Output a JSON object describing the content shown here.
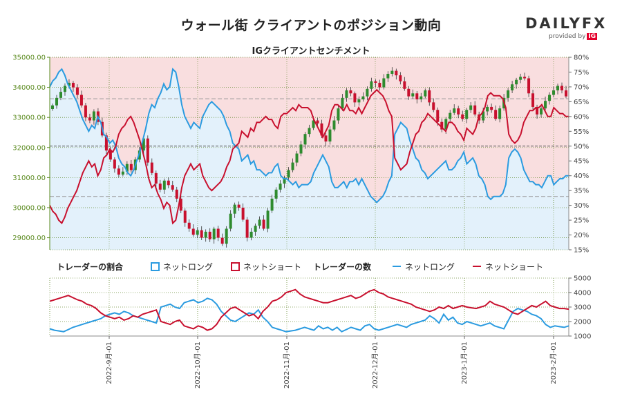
{
  "header": {
    "title": "ウォール街 クライアントのポジション動向",
    "subtitle": "IGクライアントセンチメント"
  },
  "logo": {
    "brand": "DAILYFX",
    "tagline": "provided by",
    "tagline_brand": "IG"
  },
  "legend": {
    "ratio_title": "トレーダーの割合",
    "count_title": "トレーダーの数",
    "net_long": "ネットロング",
    "net_short": "ネットショート"
  },
  "colors": {
    "long": "#2b9be0",
    "short": "#c8102e",
    "long_fill": "#e3f1fb",
    "short_fill": "#f9dedf",
    "candle_up": "#2e8b2e",
    "candle_down": "#c8102e",
    "left_axis": "#5a8a1e"
  },
  "chart_data": [
    {
      "type": "candlestick+area",
      "title": "IGクライアントセンチメント",
      "x_ticks": [
        "2022-9月-01",
        "2022-10月-01",
        "2022-11月-01",
        "2022-12月-01",
        "2023-1月-01",
        "2023-2月-01"
      ],
      "y_left_ticks": [
        "29000.00",
        "30000.00",
        "31000.00",
        "32000.00",
        "33000.00",
        "34000.00",
        "35000.00"
      ],
      "y_left_range": [
        28600,
        35000
      ],
      "y_right_ticks": [
        "15%",
        "20%",
        "25%",
        "30%",
        "35%",
        "40%",
        "45%",
        "50%",
        "55%",
        "60%",
        "65%",
        "70%",
        "75%",
        "80%"
      ],
      "y_right_range": [
        15,
        80
      ],
      "grid": "dotted",
      "price_close": [
        33400,
        33650,
        33850,
        34050,
        34150,
        34000,
        33750,
        33400,
        33000,
        32900,
        33200,
        32850,
        32400,
        31900,
        31600,
        31300,
        31100,
        31200,
        31450,
        31250,
        31600,
        31900,
        32300,
        31500,
        31150,
        30800,
        30600,
        30900,
        30750,
        30600,
        30300,
        29900,
        29500,
        29300,
        29100,
        29250,
        29000,
        29200,
        28950,
        29300,
        29000,
        28800,
        29300,
        29800,
        30100,
        30000,
        29600,
        29000,
        29200,
        29400,
        29600,
        29300,
        29900,
        30300,
        30600,
        30800,
        31000,
        31250,
        31500,
        31800,
        32100,
        32450,
        32650,
        32900,
        32800,
        32400,
        32200,
        32600,
        32900,
        33300,
        33650,
        33900,
        33800,
        33500,
        33600,
        33700,
        33950,
        34200,
        34150,
        34000,
        34300,
        34450,
        34550,
        34400,
        34200,
        33950,
        33700,
        33800,
        33600,
        33700,
        33900,
        33500,
        33250,
        32850,
        32600,
        32950,
        33150,
        33300,
        33100,
        32950,
        33250,
        33400,
        33100,
        32900,
        33200,
        33350,
        33250,
        32950,
        33300,
        33650,
        33900,
        34100,
        34250,
        34350,
        34300,
        33800,
        33350,
        33100,
        33300,
        33550,
        33750,
        33900,
        34050,
        33900,
        33700
      ],
      "sentiment_long_pct": [
        70,
        72,
        73,
        75,
        76,
        74,
        71,
        69,
        67,
        65,
        62,
        59,
        57,
        55,
        57,
        56,
        60,
        58,
        54,
        53,
        51,
        52,
        50,
        46,
        44,
        43,
        41,
        40,
        42,
        45,
        48,
        52,
        56,
        61,
        64,
        63,
        66,
        68,
        71,
        69,
        70,
        76,
        75,
        70,
        64,
        60,
        58,
        56,
        58,
        57,
        56,
        60,
        62,
        64,
        65,
        64,
        63,
        62,
        60,
        57,
        55,
        51,
        50,
        49,
        45,
        46,
        47,
        44,
        45,
        42,
        42,
        41,
        40,
        41,
        41,
        43,
        44,
        40,
        39,
        39,
        38,
        37,
        38,
        36,
        37,
        37,
        37,
        38,
        41,
        43,
        45,
        47,
        45,
        43,
        38,
        36,
        36,
        37,
        38,
        36,
        38,
        38,
        39,
        37,
        39,
        37,
        35,
        33,
        32,
        31,
        32,
        33,
        35,
        38,
        40,
        54,
        56,
        58,
        57,
        56,
        52,
        49,
        46,
        45,
        42,
        41,
        39,
        40,
        41,
        42,
        43,
        44,
        45,
        42,
        42,
        43,
        45,
        46,
        48,
        44,
        45,
        46,
        44,
        40,
        39,
        37,
        33,
        32,
        33,
        33,
        33,
        34,
        37,
        46,
        48,
        49,
        48,
        46,
        42,
        40,
        38,
        38,
        37,
        37,
        36,
        38,
        40,
        40,
        37,
        38,
        39,
        39,
        40,
        40
      ],
      "sentiment_short_pct": [
        30,
        28,
        27,
        25,
        24,
        26,
        29,
        31,
        33,
        35,
        38,
        41,
        43,
        45,
        43,
        44,
        40,
        42,
        46,
        47,
        49,
        48,
        50,
        54,
        56,
        57,
        59,
        60,
        58,
        55,
        52,
        48,
        44,
        39,
        36,
        37,
        34,
        32,
        29,
        31,
        30,
        24,
        25,
        30,
        36,
        40,
        42,
        44,
        42,
        43,
        44,
        40,
        38,
        36,
        35,
        36,
        37,
        38,
        40,
        43,
        45,
        49,
        50,
        51,
        55,
        54,
        53,
        56,
        55,
        58,
        58,
        59,
        60,
        59,
        59,
        57,
        56,
        60,
        61,
        61,
        62,
        63,
        62,
        64,
        63,
        63,
        63,
        62,
        59,
        57,
        55,
        53,
        55,
        57,
        62,
        64,
        64,
        63,
        62,
        64,
        62,
        62,
        61,
        63,
        61,
        63,
        65,
        67,
        68,
        69,
        68,
        67,
        65,
        62,
        60,
        46,
        44,
        42,
        43,
        44,
        48,
        51,
        54,
        55,
        58,
        59,
        61,
        60,
        59,
        58,
        57,
        56,
        55,
        58,
        58,
        57,
        55,
        54,
        52,
        56,
        55,
        54,
        56,
        60,
        61,
        63,
        67,
        68,
        67,
        67,
        67,
        66,
        63,
        54,
        52,
        51,
        52,
        54,
        58,
        60,
        62,
        62,
        63,
        63,
        64,
        62,
        60,
        60,
        63,
        62,
        61,
        61,
        60,
        60
      ]
    },
    {
      "type": "line",
      "title": "トレーダーの数",
      "x_ticks": [
        "2022-9月-01",
        "2022-10月-01",
        "2022-11月-01",
        "2022-12月-01",
        "2023-1月-01",
        "2023-2月-01"
      ],
      "y_right_ticks": [
        "1000",
        "2000",
        "3000",
        "4000",
        "5000"
      ],
      "y_range": [
        1000,
        5000
      ],
      "series": [
        {
          "name": "ネットロング",
          "values": [
            1500,
            1400,
            1350,
            1300,
            1450,
            1600,
            1700,
            1800,
            1900,
            2000,
            2100,
            2200,
            2400,
            2500,
            2600,
            2500,
            2700,
            2600,
            2400,
            2300,
            2200,
            2100,
            2000,
            1900,
            3000,
            3100,
            3200,
            3000,
            2900,
            3300,
            3400,
            3500,
            3300,
            3400,
            3600,
            3500,
            3200,
            2700,
            2400,
            2100,
            2000,
            2200,
            2400,
            2600,
            2500,
            2800,
            2300,
            2000,
            1600,
            1500,
            1400,
            1300,
            1350,
            1400,
            1500,
            1600,
            1500,
            1400,
            1700,
            1500,
            1600,
            1400,
            1600,
            1300,
            1450,
            1600,
            1500,
            1400,
            1700,
            1800,
            1500,
            1400,
            1500,
            1600,
            1700,
            1800,
            1700,
            1600,
            1800,
            1900,
            2000,
            2100,
            2400,
            2200,
            1900,
            2500,
            2100,
            2300,
            1900,
            1800,
            2000,
            1900,
            1800,
            1700,
            1800,
            1900,
            1700,
            1600,
            1500,
            2100,
            2700,
            2900,
            2800,
            2700,
            2500,
            2400,
            2200,
            1800,
            1600,
            1700,
            1650,
            1600,
            1700
          ]
        },
        {
          "name": "ネットショート",
          "values": [
            3400,
            3500,
            3600,
            3700,
            3800,
            3650,
            3500,
            3400,
            3200,
            3100,
            2900,
            2600,
            2400,
            2300,
            2200,
            2300,
            2100,
            2200,
            2400,
            2300,
            2500,
            2600,
            2700,
            2800,
            2000,
            1900,
            1800,
            2000,
            2100,
            1700,
            1600,
            1500,
            1700,
            1600,
            1400,
            1500,
            1800,
            2300,
            2600,
            2900,
            3000,
            2800,
            2600,
            2400,
            2500,
            2200,
            2700,
            3000,
            3400,
            3500,
            3700,
            4000,
            4100,
            4200,
            3900,
            3700,
            3600,
            3500,
            3400,
            3300,
            3300,
            3400,
            3500,
            3600,
            3700,
            3800,
            3600,
            3700,
            3900,
            4100,
            4200,
            4000,
            3900,
            3700,
            3600,
            3500,
            3400,
            3300,
            3200,
            3000,
            2900,
            2800,
            2700,
            2800,
            3000,
            2900,
            3100,
            2900,
            3000,
            3100,
            3000,
            2950,
            2900,
            3000,
            3100,
            3400,
            3200,
            3100,
            3000,
            2800,
            2600,
            2500,
            2700,
            2900,
            3100,
            3000,
            3200,
            3400,
            3100,
            3000,
            2900,
            2900,
            2850
          ]
        }
      ]
    }
  ]
}
